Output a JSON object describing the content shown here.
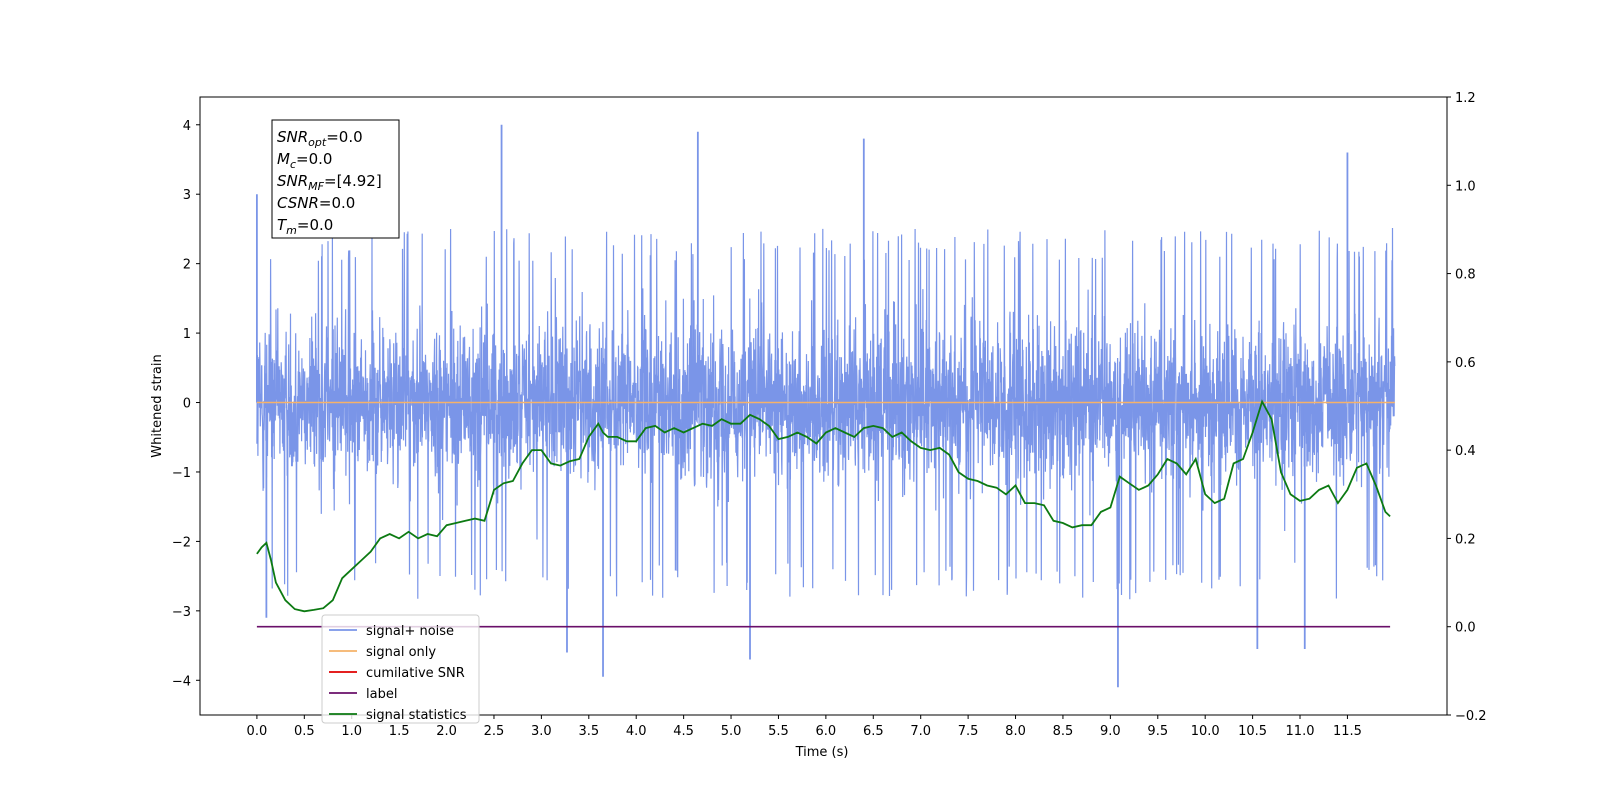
{
  "chart_data": {
    "type": "line",
    "xlabel": "Time (s)",
    "ylabel_left": "Whitened strain",
    "ylabel_right": "",
    "xlim": [
      -0.6,
      12.55
    ],
    "ylim_left": [
      -4.5,
      4.4
    ],
    "ylim_right": [
      -0.2,
      1.2
    ],
    "x_ticks": [
      "0.0",
      "0.5",
      "1.0",
      "1.5",
      "2.0",
      "2.5",
      "3.0",
      "3.5",
      "4.0",
      "4.5",
      "5.0",
      "5.5",
      "6.0",
      "6.5",
      "7.0",
      "7.5",
      "8.0",
      "8.5",
      "9.0",
      "9.5",
      "10.0",
      "10.5",
      "11.0",
      "11.5"
    ],
    "y_ticks_left": [
      "−4",
      "−3",
      "−2",
      "−1",
      "0",
      "1",
      "2",
      "3",
      "4"
    ],
    "y_ticks_right": [
      "−0.2",
      "0.0",
      "0.2",
      "0.4",
      "0.6",
      "0.8",
      "1.0",
      "1.2"
    ],
    "legend_position": "lower-left",
    "grid": false,
    "info_box": [
      {
        "sym": "SNR",
        "sub": "opt",
        "val": "=0.0"
      },
      {
        "sym": "M",
        "sub": "c",
        "val": "=0.0"
      },
      {
        "sym": "SNR",
        "sub": "MF",
        "val": "=[4.92]"
      },
      {
        "sym": "CSNR",
        "sub": "",
        "val": "=0.0"
      },
      {
        "sym": "T",
        "sub": "m",
        "val": "=0.0"
      }
    ],
    "series": [
      {
        "name": "signal+ noise",
        "color": "#7a95e8",
        "axis": "left",
        "kind": "noise",
        "x_range": [
          0.0,
          12.0
        ],
        "mean": 0.0,
        "envelope": [
          -2.7,
          2.4
        ],
        "extremes": [
          [
            0.0,
            3.0
          ],
          [
            2.58,
            4.0
          ],
          [
            4.65,
            3.9
          ],
          [
            6.4,
            3.8
          ],
          [
            11.5,
            3.6
          ],
          [
            0.1,
            -3.1
          ],
          [
            3.27,
            -3.6
          ],
          [
            3.65,
            -3.95
          ],
          [
            5.2,
            -3.7
          ],
          [
            9.08,
            -4.1
          ],
          [
            10.55,
            -3.55
          ],
          [
            11.05,
            -3.55
          ]
        ]
      },
      {
        "name": "signal only",
        "color": "#f5b26a",
        "axis": "left",
        "x": [
          0.0,
          12.0
        ],
        "values": [
          0.0,
          0.0
        ]
      },
      {
        "name": "cumilative SNR",
        "color": "#e00000",
        "axis": "right",
        "x": [],
        "values": []
      },
      {
        "name": "label",
        "color": "#6a0f6a",
        "axis": "right",
        "x": [
          0.0,
          11.95
        ],
        "values": [
          0.0,
          0.0
        ]
      },
      {
        "name": "signal statistics",
        "color": "#0c7a12",
        "axis": "right",
        "x": [
          0.0,
          0.05,
          0.1,
          0.15,
          0.2,
          0.3,
          0.4,
          0.5,
          0.6,
          0.7,
          0.8,
          0.9,
          1.0,
          1.1,
          1.2,
          1.3,
          1.4,
          1.5,
          1.6,
          1.7,
          1.8,
          1.9,
          2.0,
          2.1,
          2.2,
          2.3,
          2.4,
          2.5,
          2.6,
          2.7,
          2.8,
          2.9,
          3.0,
          3.1,
          3.2,
          3.3,
          3.4,
          3.5,
          3.6,
          3.65,
          3.7,
          3.8,
          3.9,
          4.0,
          4.1,
          4.2,
          4.3,
          4.4,
          4.5,
          4.6,
          4.7,
          4.8,
          4.9,
          5.0,
          5.1,
          5.2,
          5.3,
          5.4,
          5.5,
          5.6,
          5.7,
          5.8,
          5.9,
          6.0,
          6.1,
          6.2,
          6.3,
          6.4,
          6.5,
          6.6,
          6.7,
          6.8,
          6.9,
          7.0,
          7.1,
          7.2,
          7.3,
          7.4,
          7.5,
          7.6,
          7.7,
          7.8,
          7.9,
          8.0,
          8.1,
          8.2,
          8.3,
          8.4,
          8.5,
          8.6,
          8.7,
          8.8,
          8.9,
          9.0,
          9.1,
          9.2,
          9.3,
          9.4,
          9.5,
          9.6,
          9.7,
          9.8,
          9.9,
          10.0,
          10.1,
          10.2,
          10.3,
          10.4,
          10.5,
          10.6,
          10.7,
          10.8,
          10.9,
          11.0,
          11.1,
          11.2,
          11.3,
          11.4,
          11.5,
          11.6,
          11.7,
          11.8,
          11.9,
          11.95
        ],
        "values": [
          0.165,
          0.18,
          0.19,
          0.15,
          0.1,
          0.06,
          0.04,
          0.035,
          0.038,
          0.042,
          0.06,
          0.11,
          0.13,
          0.15,
          0.17,
          0.2,
          0.21,
          0.2,
          0.215,
          0.2,
          0.21,
          0.205,
          0.23,
          0.235,
          0.24,
          0.245,
          0.24,
          0.31,
          0.325,
          0.33,
          0.37,
          0.4,
          0.4,
          0.37,
          0.365,
          0.375,
          0.38,
          0.43,
          0.46,
          0.44,
          0.43,
          0.43,
          0.42,
          0.42,
          0.45,
          0.455,
          0.44,
          0.45,
          0.44,
          0.45,
          0.46,
          0.455,
          0.47,
          0.46,
          0.46,
          0.48,
          0.47,
          0.455,
          0.425,
          0.43,
          0.44,
          0.43,
          0.415,
          0.44,
          0.45,
          0.44,
          0.43,
          0.45,
          0.455,
          0.45,
          0.43,
          0.44,
          0.42,
          0.405,
          0.4,
          0.405,
          0.39,
          0.35,
          0.335,
          0.33,
          0.32,
          0.315,
          0.3,
          0.32,
          0.28,
          0.28,
          0.275,
          0.24,
          0.235,
          0.225,
          0.23,
          0.23,
          0.26,
          0.27,
          0.34,
          0.325,
          0.31,
          0.32,
          0.345,
          0.38,
          0.37,
          0.345,
          0.38,
          0.3,
          0.28,
          0.29,
          0.37,
          0.38,
          0.44,
          0.51,
          0.47,
          0.35,
          0.3,
          0.285,
          0.29,
          0.31,
          0.32,
          0.28,
          0.31,
          0.36,
          0.37,
          0.32,
          0.26,
          0.25
        ]
      }
    ]
  }
}
